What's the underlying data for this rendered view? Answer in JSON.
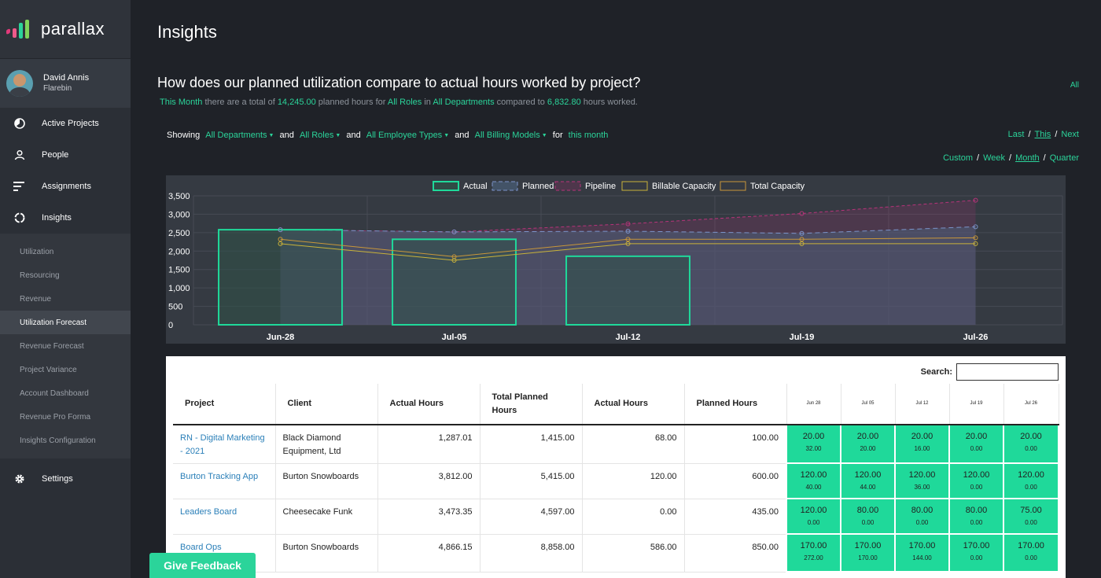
{
  "brand": {
    "name": "parallax"
  },
  "user": {
    "name": "David Annis",
    "org": "Flarebin"
  },
  "nav": [
    {
      "label": "Active Projects",
      "icon": "pie-chart-icon"
    },
    {
      "label": "People",
      "icon": "person-icon"
    },
    {
      "label": "Assignments",
      "icon": "bars-icon"
    },
    {
      "label": "Insights",
      "icon": "ring-icon"
    }
  ],
  "subnav": [
    {
      "label": "Utilization"
    },
    {
      "label": "Resourcing"
    },
    {
      "label": "Revenue"
    },
    {
      "label": "Utilization Forecast",
      "active": true
    },
    {
      "label": "Revenue Forecast"
    },
    {
      "label": "Project Variance"
    },
    {
      "label": "Account Dashboard"
    },
    {
      "label": "Revenue Pro Forma"
    },
    {
      "label": "Insights Configuration"
    }
  ],
  "settings": {
    "label": "Settings"
  },
  "page": {
    "title": "Insights",
    "question": "How does our planned utilization compare to actual hours worked by project?",
    "all_link": "All",
    "summary": {
      "period": "This Month",
      "t1": " there are a total of ",
      "planned": "14,245.00",
      "t2": " planned hours for ",
      "roles": "All Roles",
      "t3": " in ",
      "departments": "All Departments",
      "t4": " compared to ",
      "actual": "6,832.80",
      "t5": " hours worked."
    }
  },
  "filters": {
    "showing": "Showing",
    "and": "and",
    "for": "for",
    "departments": "All Departments",
    "roles": "All Roles",
    "employee_types": "All Employee Types",
    "billing_models": "All Billing Models",
    "period": "this month"
  },
  "period_nav": {
    "last": "Last",
    "this": "This",
    "next": "Next",
    "sep": "/"
  },
  "range_nav": {
    "custom": "Custom",
    "week": "Week",
    "month": "Month",
    "quarter": "Quarter",
    "sep": "/"
  },
  "colors": {
    "accent": "#2bd49a",
    "actual": "#1fd99a",
    "planned": "#7b93c9",
    "pipeline": "#b8337a",
    "billable": "#c9b33a",
    "total": "#c9973a"
  },
  "chart_data": {
    "type": "bar",
    "categories": [
      "Jun-28",
      "Jul-05",
      "Jul-12",
      "Jul-19",
      "Jul-26"
    ],
    "ylim": [
      0,
      3500
    ],
    "yticks": [
      "3,500",
      "3,000",
      "2,500",
      "2,000",
      "1,500",
      "1,000",
      "500",
      "0"
    ],
    "grid": true,
    "legend_position": "top",
    "series": [
      {
        "name": "Actual",
        "type": "bar",
        "values": [
          2580,
          2320,
          1860,
          null,
          null
        ]
      },
      {
        "name": "Planned",
        "type": "area",
        "values": [
          2580,
          2520,
          2540,
          2480,
          2660
        ]
      },
      {
        "name": "Pipeline",
        "type": "area",
        "values": [
          2580,
          2520,
          2740,
          3020,
          3380
        ]
      },
      {
        "name": "Billable Capacity",
        "type": "line",
        "values": [
          2200,
          1750,
          2200,
          2200,
          2200
        ]
      },
      {
        "name": "Total Capacity",
        "type": "line",
        "values": [
          2320,
          1850,
          2320,
          2320,
          2360
        ]
      }
    ]
  },
  "table": {
    "search_label": "Search:",
    "headers": [
      "Project",
      "Client",
      "Actual Hours",
      "Total Planned Hours",
      "Actual Hours",
      "Planned Hours"
    ],
    "week_headers": [
      "Jun 28",
      "Jul 05",
      "Jul 12",
      "Jul 19",
      "Jul 26"
    ],
    "rows": [
      {
        "project": "RN - Digital Marketing - 2021",
        "client": "Black Diamond Equipment, Ltd",
        "actual_total": "1,287.01",
        "planned_total": "1,415.00",
        "actual": "68.00",
        "planned": "100.00",
        "weeks": [
          [
            "20.00",
            "32.00"
          ],
          [
            "20.00",
            "20.00"
          ],
          [
            "20.00",
            "16.00"
          ],
          [
            "20.00",
            "0.00"
          ],
          [
            "20.00",
            "0.00"
          ]
        ]
      },
      {
        "project": "Burton Tracking App",
        "client": "Burton Snowboards",
        "actual_total": "3,812.00",
        "planned_total": "5,415.00",
        "actual": "120.00",
        "planned": "600.00",
        "weeks": [
          [
            "120.00",
            "40.00"
          ],
          [
            "120.00",
            "44.00"
          ],
          [
            "120.00",
            "36.00"
          ],
          [
            "120.00",
            "0.00"
          ],
          [
            "120.00",
            "0.00"
          ]
        ]
      },
      {
        "project": "Leaders Board",
        "client": "Cheesecake Funk",
        "actual_total": "3,473.35",
        "planned_total": "4,597.00",
        "actual": "0.00",
        "planned": "435.00",
        "weeks": [
          [
            "120.00",
            "0.00"
          ],
          [
            "80.00",
            "0.00"
          ],
          [
            "80.00",
            "0.00"
          ],
          [
            "80.00",
            "0.00"
          ],
          [
            "75.00",
            "0.00"
          ]
        ]
      },
      {
        "project": "Board Ops",
        "client": "Burton Snowboards",
        "actual_total": "4,866.15",
        "planned_total": "8,858.00",
        "actual": "586.00",
        "planned": "850.00",
        "weeks": [
          [
            "170.00",
            "272.00"
          ],
          [
            "170.00",
            "170.00"
          ],
          [
            "170.00",
            "144.00"
          ],
          [
            "170.00",
            "0.00"
          ],
          [
            "170.00",
            "0.00"
          ]
        ]
      }
    ]
  },
  "feedback": {
    "label": "Give Feedback"
  }
}
